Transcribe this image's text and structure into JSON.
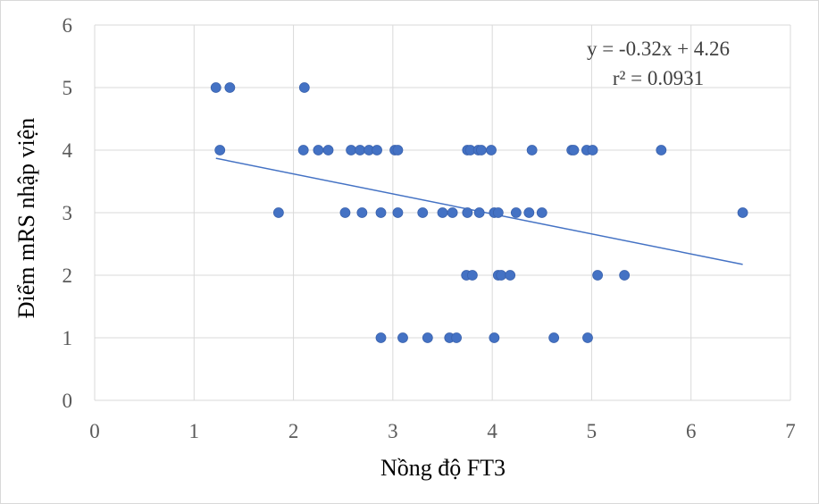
{
  "chart_data": {
    "type": "scatter",
    "title": "",
    "xlabel": "Nồng độ FT3",
    "ylabel": "Điểm mRS nhập viện",
    "xlim": [
      0,
      7
    ],
    "ylim": [
      0,
      6
    ],
    "x_ticks": [
      "0",
      "1",
      "2",
      "3",
      "4",
      "5",
      "6",
      "7"
    ],
    "y_ticks": [
      "0",
      "1",
      "2",
      "3",
      "4",
      "5",
      "6"
    ],
    "grid": true,
    "legend": "none",
    "series": [
      {
        "name": "mRS",
        "points": [
          [
            1.22,
            5
          ],
          [
            1.36,
            5
          ],
          [
            2.11,
            5
          ],
          [
            1.26,
            4
          ],
          [
            2.1,
            4
          ],
          [
            2.25,
            4
          ],
          [
            2.35,
            4
          ],
          [
            2.58,
            4
          ],
          [
            2.67,
            4
          ],
          [
            2.76,
            4
          ],
          [
            2.84,
            4
          ],
          [
            3.02,
            4
          ],
          [
            3.05,
            4
          ],
          [
            3.75,
            4
          ],
          [
            3.78,
            4
          ],
          [
            3.86,
            4
          ],
          [
            3.89,
            4
          ],
          [
            3.99,
            4
          ],
          [
            4.4,
            4
          ],
          [
            4.8,
            4
          ],
          [
            4.82,
            4
          ],
          [
            4.95,
            4
          ],
          [
            5.01,
            4
          ],
          [
            5.7,
            4
          ],
          [
            1.85,
            3
          ],
          [
            2.52,
            3
          ],
          [
            2.69,
            3
          ],
          [
            2.88,
            3
          ],
          [
            3.05,
            3
          ],
          [
            3.3,
            3
          ],
          [
            3.5,
            3
          ],
          [
            3.6,
            3
          ],
          [
            3.75,
            3
          ],
          [
            3.87,
            3
          ],
          [
            4.02,
            3
          ],
          [
            4.06,
            3
          ],
          [
            4.24,
            3
          ],
          [
            4.37,
            3
          ],
          [
            4.5,
            3
          ],
          [
            6.52,
            3
          ],
          [
            3.74,
            2
          ],
          [
            3.8,
            2
          ],
          [
            4.06,
            2
          ],
          [
            4.09,
            2
          ],
          [
            4.18,
            2
          ],
          [
            5.06,
            2
          ],
          [
            5.33,
            2
          ],
          [
            2.88,
            1
          ],
          [
            3.1,
            1
          ],
          [
            3.35,
            1
          ],
          [
            3.57,
            1
          ],
          [
            3.64,
            1
          ],
          [
            4.02,
            1
          ],
          [
            4.62,
            1
          ],
          [
            4.96,
            1
          ]
        ]
      }
    ],
    "trendline": {
      "type": "linear",
      "slope": -0.32,
      "intercept": 4.26,
      "x_range": [
        1.22,
        6.52
      ],
      "equation": "y = -0.32x + 4.26",
      "r_squared": "r² = 0.0931"
    },
    "colors": {
      "marker": "#4472c4",
      "trendline": "#4472c4",
      "grid": "#d9d9d9"
    }
  }
}
